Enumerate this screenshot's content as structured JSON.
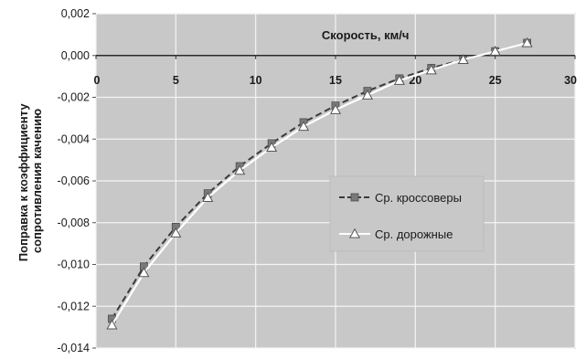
{
  "chart_data": {
    "type": "line",
    "title": "",
    "xlabel": "Скорость, км/ч",
    "ylabel_lines": [
      "Поправка к коэффициенту",
      "сопротивления качению"
    ],
    "xlim": [
      0,
      30
    ],
    "ylim": [
      -0.014,
      0.002
    ],
    "x_ticks": [
      0,
      5,
      10,
      15,
      20,
      25,
      30
    ],
    "x_tick_labels": [
      "0",
      "5",
      "10",
      "15",
      "20",
      "25",
      "30"
    ],
    "y_ticks": [
      0.002,
      0.0,
      -0.002,
      -0.004,
      -0.006,
      -0.008,
      -0.01,
      -0.012,
      -0.014
    ],
    "y_tick_labels": [
      "0,002",
      "0,000",
      "-0,002",
      "-0,004",
      "-0,006",
      "-0,008",
      "-0,010",
      "-0,012",
      "-0,014"
    ],
    "grid": true,
    "background_color": "#c8c8c8",
    "legend_position": "center-right",
    "x": [
      1,
      3,
      5,
      7,
      9,
      11,
      13,
      15,
      17,
      19,
      21,
      23,
      25,
      27
    ],
    "series": [
      {
        "name": "Ср. кроссоверы",
        "marker": "square",
        "line_style": "dashed",
        "color": "#3a3a3a",
        "marker_color": "#7a7a7a",
        "values": [
          -0.0126,
          -0.0101,
          -0.0082,
          -0.0066,
          -0.0053,
          -0.0042,
          -0.0032,
          -0.0024,
          -0.0017,
          -0.0011,
          -0.0006,
          -0.0002,
          0.0002,
          0.0006
        ]
      },
      {
        "name": "Ср. дорожные",
        "marker": "triangle",
        "line_style": "solid",
        "color": "#ffffff",
        "marker_color": "#ffffff",
        "values": [
          -0.0129,
          -0.0104,
          -0.0085,
          -0.0068,
          -0.0055,
          -0.0044,
          -0.0034,
          -0.0026,
          -0.0019,
          -0.0012,
          -0.0007,
          -0.0002,
          0.0002,
          0.0006
        ]
      }
    ]
  }
}
